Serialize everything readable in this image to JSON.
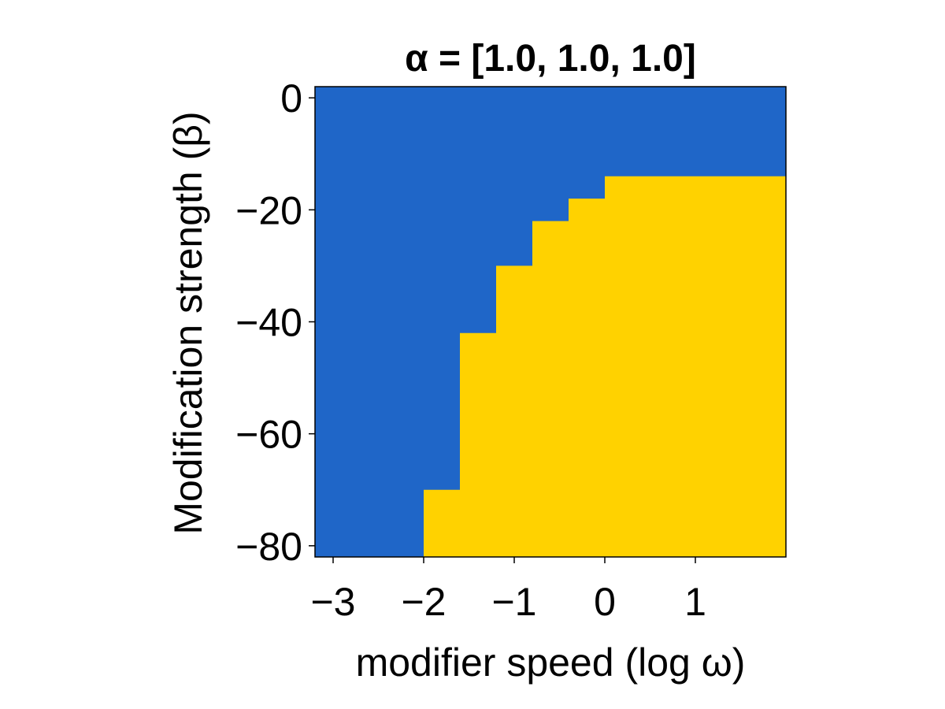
{
  "chart_data": {
    "type": "heatmap",
    "title": "α = [1.0, 1.0, 1.0]",
    "xlabel": "modifier speed (log ω)",
    "ylabel": "Modification strength (β)",
    "xlim": [
      -3.2,
      2.0
    ],
    "ylim": [
      -82,
      2
    ],
    "x_ticks": [
      -3,
      -2,
      -1,
      0,
      1
    ],
    "x_tick_labels": [
      "−3",
      "−2",
      "−1",
      "0",
      "1"
    ],
    "y_ticks": [
      0,
      -20,
      -40,
      -60,
      -80
    ],
    "y_tick_labels": [
      "0",
      "−20",
      "−40",
      "−60",
      "−80"
    ],
    "grid": false,
    "colors": {
      "region_a": "#1f66c8",
      "region_b": "#ffd200",
      "axis": "#000000"
    },
    "background_region": "region_a",
    "boundary": {
      "description_x": "log ω bin edge",
      "points": [
        {
          "x": -2.0,
          "y": -82
        },
        {
          "x": -2.0,
          "y": -70
        },
        {
          "x": -1.6,
          "y": -70
        },
        {
          "x": -1.6,
          "y": -42
        },
        {
          "x": -1.2,
          "y": -42
        },
        {
          "x": -1.2,
          "y": -30
        },
        {
          "x": -0.8,
          "y": -30
        },
        {
          "x": -0.8,
          "y": -22
        },
        {
          "x": -0.4,
          "y": -22
        },
        {
          "x": -0.4,
          "y": -18
        },
        {
          "x": 0.0,
          "y": -18
        },
        {
          "x": 0.0,
          "y": -14
        },
        {
          "x": 2.0,
          "y": -14
        },
        {
          "x": 2.0,
          "y": -82
        }
      ]
    }
  }
}
